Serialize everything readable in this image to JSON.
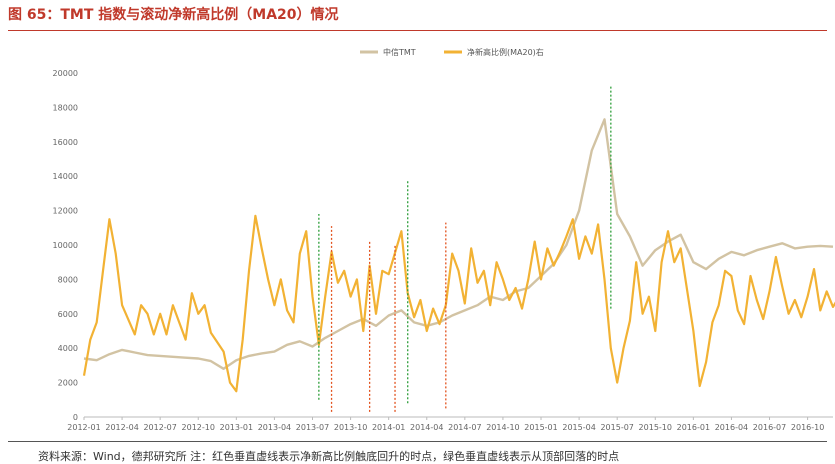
{
  "title": "图 65：TMT 指数与滚动净新高比例（MA20）情况",
  "source": "资料来源：Wind，德邦研究所  注：红色垂直虚线表示净新高比例触底回升的时点，绿色垂直虚线表示从顶部回落的时点",
  "colors": {
    "title": "#c0392b",
    "tmt": "#d2c3a3",
    "ratio": "#f2b234",
    "red_line": "#e2531f",
    "green_line": "#2e9e3a"
  },
  "chart_data": {
    "type": "line",
    "title": "图 65：TMT 指数与滚动净新高比例（MA20）情况",
    "legend_position": "top",
    "x_ticks": [
      "2012-01",
      "2012-04",
      "2012-07",
      "2012-10",
      "2013-01",
      "2013-04",
      "2013-07",
      "2013-10",
      "2014-01",
      "2014-04",
      "2014-07",
      "2014-10",
      "2015-01",
      "2015-04",
      "2015-07",
      "2015-10",
      "2016-01",
      "2016-04",
      "2016-07",
      "2016-10"
    ],
    "x_range": [
      "2012-01",
      "2016-12"
    ],
    "y_ticks": [
      0,
      2000,
      4000,
      6000,
      8000,
      10000,
      12000,
      14000,
      16000,
      18000,
      20000
    ],
    "ylim": [
      0,
      20000
    ],
    "series": [
      {
        "name": "中信TMT",
        "color": "#d2c3a3",
        "points": [
          [
            "2012-01",
            3400
          ],
          [
            "2012-02",
            3300
          ],
          [
            "2012-03",
            3650
          ],
          [
            "2012-04",
            3900
          ],
          [
            "2012-05",
            3750
          ],
          [
            "2012-06",
            3600
          ],
          [
            "2012-07",
            3550
          ],
          [
            "2012-08",
            3500
          ],
          [
            "2012-09",
            3450
          ],
          [
            "2012-10",
            3400
          ],
          [
            "2012-11",
            3250
          ],
          [
            "2012-12",
            2800
          ],
          [
            "2013-01",
            3300
          ],
          [
            "2013-02",
            3550
          ],
          [
            "2013-03",
            3700
          ],
          [
            "2013-04",
            3800
          ],
          [
            "2013-05",
            4200
          ],
          [
            "2013-06",
            4400
          ],
          [
            "2013-07",
            4100
          ],
          [
            "2013-08",
            4600
          ],
          [
            "2013-09",
            5000
          ],
          [
            "2013-10",
            5400
          ],
          [
            "2013-11",
            5700
          ],
          [
            "2013-12",
            5300
          ],
          [
            "2014-01",
            5900
          ],
          [
            "2014-02",
            6200
          ],
          [
            "2014-03",
            5500
          ],
          [
            "2014-04",
            5300
          ],
          [
            "2014-05",
            5500
          ],
          [
            "2014-06",
            5900
          ],
          [
            "2014-07",
            6200
          ],
          [
            "2014-08",
            6500
          ],
          [
            "2014-09",
            7000
          ],
          [
            "2014-10",
            6800
          ],
          [
            "2014-11",
            7300
          ],
          [
            "2014-12",
            7500
          ],
          [
            "2015-01",
            8200
          ],
          [
            "2015-02",
            8900
          ],
          [
            "2015-03",
            10000
          ],
          [
            "2015-04",
            12000
          ],
          [
            "2015-05",
            15500
          ],
          [
            "2015-06",
            17300
          ],
          [
            "2015-07",
            11800
          ],
          [
            "2015-08",
            10500
          ],
          [
            "2015-09",
            8800
          ],
          [
            "2015-10",
            9700
          ],
          [
            "2015-11",
            10200
          ],
          [
            "2015-12",
            10600
          ],
          [
            "2016-01",
            9000
          ],
          [
            "2016-02",
            8600
          ],
          [
            "2016-03",
            9200
          ],
          [
            "2016-04",
            9600
          ],
          [
            "2016-05",
            9400
          ],
          [
            "2016-06",
            9700
          ],
          [
            "2016-07",
            9900
          ],
          [
            "2016-08",
            10100
          ],
          [
            "2016-09",
            9800
          ],
          [
            "2016-10",
            9900
          ],
          [
            "2016-11",
            9950
          ],
          [
            "2016-12",
            9900
          ]
        ]
      },
      {
        "name": "净新高比例(MA20)右",
        "color": "#f2b234",
        "points": [
          [
            "2012-01",
            2400
          ],
          [
            "2012-01",
            4500
          ],
          [
            "2012-02",
            5500
          ],
          [
            "2012-02",
            8500
          ],
          [
            "2012-03",
            11500
          ],
          [
            "2012-03",
            9500
          ],
          [
            "2012-04",
            6500
          ],
          [
            "2012-05",
            4800
          ],
          [
            "2012-05",
            6500
          ],
          [
            "2012-06",
            6000
          ],
          [
            "2012-06",
            4800
          ],
          [
            "2012-07",
            6000
          ],
          [
            "2012-07",
            4800
          ],
          [
            "2012-08",
            6500
          ],
          [
            "2012-09",
            4500
          ],
          [
            "2012-09",
            7200
          ],
          [
            "2012-10",
            6000
          ],
          [
            "2012-10",
            6500
          ],
          [
            "2012-11",
            4900
          ],
          [
            "2012-12",
            3800
          ],
          [
            "2012-12",
            2000
          ],
          [
            "2013-01",
            1500
          ],
          [
            "2013-01",
            4500
          ],
          [
            "2013-02",
            8500
          ],
          [
            "2013-02",
            11700
          ],
          [
            "2013-03",
            9800
          ],
          [
            "2013-03",
            8000
          ],
          [
            "2013-04",
            6500
          ],
          [
            "2013-04",
            8000
          ],
          [
            "2013-05",
            6200
          ],
          [
            "2013-05",
            5500
          ],
          [
            "2013-06",
            9500
          ],
          [
            "2013-06",
            10800
          ],
          [
            "2013-07",
            7000
          ],
          [
            "2013-07",
            4200
          ],
          [
            "2013-08",
            7000
          ],
          [
            "2013-08",
            9600
          ],
          [
            "2013-09",
            7800
          ],
          [
            "2013-09",
            8500
          ],
          [
            "2013-10",
            7000
          ],
          [
            "2013-10",
            8000
          ],
          [
            "2013-11",
            5000
          ],
          [
            "2013-11",
            8800
          ],
          [
            "2013-12",
            6000
          ],
          [
            "2013-12",
            8500
          ],
          [
            "2014-01",
            8300
          ],
          [
            "2014-02",
            10800
          ],
          [
            "2014-02",
            7200
          ],
          [
            "2014-03",
            5800
          ],
          [
            "2014-03",
            6800
          ],
          [
            "2014-04",
            5000
          ],
          [
            "2014-04",
            6300
          ],
          [
            "2014-05",
            5400
          ],
          [
            "2014-05",
            6500
          ],
          [
            "2014-06",
            9500
          ],
          [
            "2014-06",
            8500
          ],
          [
            "2014-07",
            6600
          ],
          [
            "2014-07",
            9800
          ],
          [
            "2014-08",
            7800
          ],
          [
            "2014-08",
            8500
          ],
          [
            "2014-09",
            6500
          ],
          [
            "2014-09",
            9000
          ],
          [
            "2014-10",
            8000
          ],
          [
            "2014-10",
            6800
          ],
          [
            "2014-11",
            7500
          ],
          [
            "2014-11",
            6300
          ],
          [
            "2014-12",
            8000
          ],
          [
            "2014-12",
            10200
          ],
          [
            "2015-01",
            8000
          ],
          [
            "2015-01",
            9800
          ],
          [
            "2015-02",
            8800
          ],
          [
            "2015-02",
            9600
          ],
          [
            "2015-03",
            10500
          ],
          [
            "2015-03",
            11500
          ],
          [
            "2015-04",
            9200
          ],
          [
            "2015-04",
            10500
          ],
          [
            "2015-05",
            9500
          ],
          [
            "2015-05",
            11200
          ],
          [
            "2015-06",
            8000
          ],
          [
            "2015-06",
            4000
          ],
          [
            "2015-07",
            2000
          ],
          [
            "2015-07",
            4000
          ],
          [
            "2015-08",
            5600
          ],
          [
            "2015-08",
            9000
          ],
          [
            "2015-09",
            6000
          ],
          [
            "2015-09",
            7000
          ],
          [
            "2015-10",
            5000
          ],
          [
            "2015-10",
            9000
          ],
          [
            "2015-11",
            10800
          ],
          [
            "2015-11",
            9000
          ],
          [
            "2015-12",
            9800
          ],
          [
            "2016-01",
            5000
          ],
          [
            "2016-01",
            1800
          ],
          [
            "2016-02",
            3200
          ],
          [
            "2016-02",
            5500
          ],
          [
            "2016-03",
            6500
          ],
          [
            "2016-03",
            8500
          ],
          [
            "2016-04",
            8200
          ],
          [
            "2016-04",
            6200
          ],
          [
            "2016-05",
            5400
          ],
          [
            "2016-05",
            8200
          ],
          [
            "2016-06",
            6800
          ],
          [
            "2016-06",
            5700
          ],
          [
            "2016-07",
            7300
          ],
          [
            "2016-07",
            9300
          ],
          [
            "2016-08",
            7600
          ],
          [
            "2016-08",
            6000
          ],
          [
            "2016-09",
            6800
          ],
          [
            "2016-09",
            5800
          ],
          [
            "2016-10",
            7000
          ],
          [
            "2016-10",
            8600
          ],
          [
            "2016-11",
            6200
          ],
          [
            "2016-11",
            7300
          ],
          [
            "2016-12",
            6400
          ],
          [
            "2016-12",
            7000
          ]
        ]
      }
    ],
    "markers": [
      {
        "date": "2013-07",
        "type": "green",
        "y_from": 1000,
        "y_to": 11800
      },
      {
        "date": "2013-08",
        "type": "red",
        "y_from": 300,
        "y_to": 11100
      },
      {
        "date": "2013-11",
        "type": "red",
        "y_from": 300,
        "y_to": 10300
      },
      {
        "date": "2014-01",
        "type": "red",
        "y_from": 300,
        "y_to": 10000
      },
      {
        "date": "2014-02",
        "type": "green",
        "y_from": 800,
        "y_to": 13800
      },
      {
        "date": "2014-05",
        "type": "red",
        "y_from": 500,
        "y_to": 11300
      },
      {
        "date": "2015-06",
        "type": "green",
        "y_from": 6300,
        "y_to": 19300
      }
    ]
  }
}
